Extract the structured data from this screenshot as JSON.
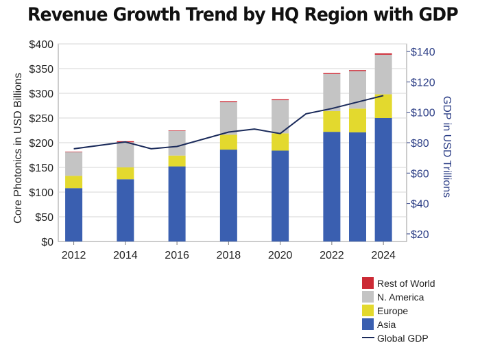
{
  "title": "Revenue Growth Trend by HQ Region with GDP",
  "colors": {
    "asia": "#3a5fb0",
    "europe": "#e3d92e",
    "north_america": "#c4c4c4",
    "rest_of_world": "#cc2a35",
    "gdp_line": "#1a2a5a",
    "right_axis": "#2c3e86"
  },
  "chart_data": {
    "type": "bar",
    "stacked": true,
    "x_ticks": [
      "2012",
      "2014",
      "2016",
      "2018",
      "2020",
      "2022",
      "2024"
    ],
    "bar_years": [
      2012,
      2014,
      2016,
      2018,
      2020,
      2022,
      2023,
      2024
    ],
    "series": [
      {
        "name": "Asia",
        "values": [
          108,
          126,
          152,
          186,
          184,
          222,
          221,
          250
        ]
      },
      {
        "name": "Europe",
        "values": [
          25,
          24,
          22,
          30,
          35,
          42,
          48,
          48
        ]
      },
      {
        "name": "N. America",
        "values": [
          48,
          51,
          50,
          66,
          67,
          75,
          76,
          80
        ]
      },
      {
        "name": "Rest of World",
        "values": [
          1,
          2,
          1,
          2,
          2,
          2,
          2,
          3
        ]
      }
    ],
    "line_series": {
      "name": "Global GDP",
      "x": [
        2012,
        2014,
        2015,
        2016,
        2018,
        2019,
        2020,
        2021,
        2022,
        2024
      ],
      "y": [
        76,
        80.5,
        76,
        77.5,
        87,
        89,
        86,
        99,
        102.5,
        111
      ]
    },
    "y_left": {
      "label": "Core Photonics in USD Billions",
      "range": [
        0,
        400
      ],
      "ticks": [
        "$0",
        "$50",
        "$100",
        "$150",
        "$200",
        "$250",
        "$300",
        "$350",
        "$400"
      ]
    },
    "y_right": {
      "label": "GDP in USD Trillions",
      "range": [
        15,
        145
      ],
      "ticks": [
        "$20",
        "$40",
        "$60",
        "$80",
        "$100",
        "$120",
        "$140"
      ]
    },
    "legend": [
      "Rest of World",
      "N. America",
      "Europe",
      "Asia",
      "Global GDP"
    ],
    "legend_position": "bottom-right",
    "grid": true
  }
}
